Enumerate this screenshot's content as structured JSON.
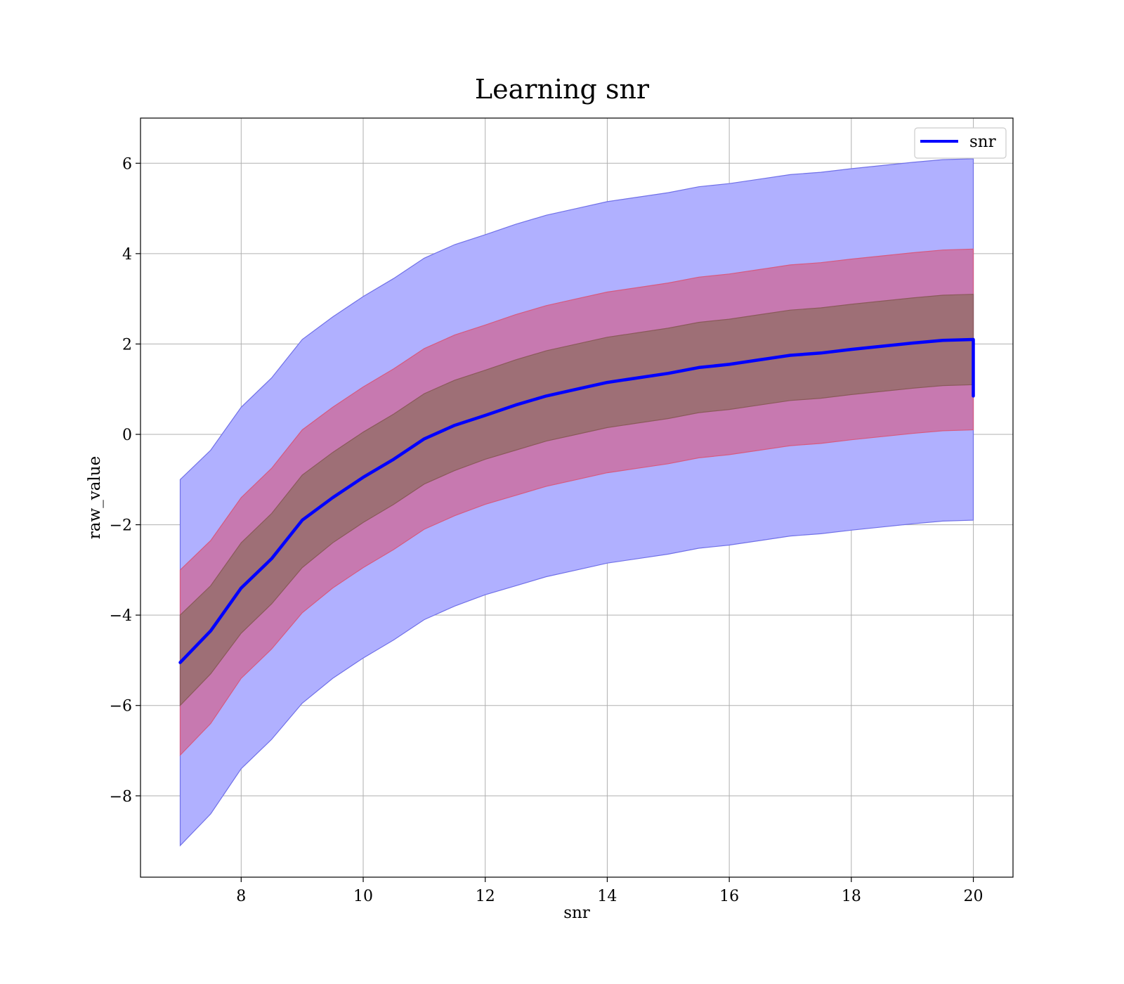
{
  "chart_data": {
    "type": "line",
    "title": "Learning snr",
    "xlabel": "snr",
    "ylabel": "raw_value",
    "xlim": [
      6.35,
      20.65
    ],
    "ylim": [
      -9.8,
      7.0
    ],
    "xticks": [
      8,
      10,
      12,
      14,
      16,
      18,
      20
    ],
    "yticks": [
      -8,
      -6,
      -4,
      -2,
      0,
      2,
      4,
      6
    ],
    "ytick_labels": [
      "−8",
      "−6",
      "−4",
      "−2",
      "0",
      "2",
      "4",
      "6"
    ],
    "xtick_labels": [
      "8",
      "10",
      "12",
      "14",
      "16",
      "18",
      "20"
    ],
    "grid": true,
    "legend": {
      "position": "top-right",
      "entries": [
        "snr"
      ]
    },
    "colors": {
      "line": "#0000ff",
      "outer_band": "#b0b0ff",
      "outer_edge": "#7070e8",
      "middle_band": "#c779b0",
      "middle_edge": "#d65a80",
      "inner_band": "#9e6f76",
      "inner_edge": "#8a5a5a",
      "grid": "#b0b0b0"
    },
    "series": [
      {
        "name": "snr",
        "x": [
          7.0,
          7.5,
          8.0,
          8.5,
          9.0,
          9.5,
          10.0,
          10.5,
          11.0,
          11.5,
          12.0,
          12.5,
          13.0,
          13.5,
          14.0,
          14.5,
          15.0,
          15.5,
          16.0,
          16.5,
          17.0,
          17.5,
          18.0,
          18.5,
          19.0,
          19.5,
          20.0
        ],
        "y": [
          -5.05,
          -4.35,
          -3.4,
          -2.75,
          -1.9,
          -1.4,
          -0.95,
          -0.55,
          -0.1,
          0.2,
          0.42,
          0.65,
          0.85,
          1.0,
          1.15,
          1.25,
          1.35,
          1.48,
          1.55,
          1.65,
          1.75,
          1.8,
          1.88,
          1.95,
          2.02,
          2.08,
          2.1
        ],
        "band_inner": {
          "lower": [
            -6.0,
            -5.3,
            -4.4,
            -3.75,
            -2.95,
            -2.4,
            -1.95,
            -1.55,
            -1.1,
            -0.8,
            -0.55,
            -0.35,
            -0.15,
            0.0,
            0.15,
            0.25,
            0.35,
            0.48,
            0.55,
            0.65,
            0.75,
            0.8,
            0.88,
            0.95,
            1.02,
            1.08,
            1.1
          ],
          "upper": [
            -4.0,
            -3.35,
            -2.4,
            -1.75,
            -0.9,
            -0.4,
            0.05,
            0.45,
            0.9,
            1.2,
            1.42,
            1.65,
            1.85,
            2.0,
            2.15,
            2.25,
            2.35,
            2.48,
            2.55,
            2.65,
            2.75,
            2.8,
            2.88,
            2.95,
            3.02,
            3.08,
            3.1
          ]
        },
        "band_middle": {
          "lower": [
            -7.1,
            -6.4,
            -5.4,
            -4.75,
            -3.95,
            -3.4,
            -2.95,
            -2.55,
            -2.1,
            -1.8,
            -1.55,
            -1.35,
            -1.15,
            -1.0,
            -0.85,
            -0.75,
            -0.65,
            -0.52,
            -0.45,
            -0.35,
            -0.25,
            -0.2,
            -0.12,
            -0.05,
            0.02,
            0.08,
            0.1
          ],
          "upper": [
            -3.0,
            -2.35,
            -1.4,
            -0.75,
            0.1,
            0.6,
            1.05,
            1.45,
            1.9,
            2.2,
            2.42,
            2.65,
            2.85,
            3.0,
            3.15,
            3.25,
            3.35,
            3.48,
            3.55,
            3.65,
            3.75,
            3.8,
            3.88,
            3.95,
            4.02,
            4.08,
            4.1
          ]
        },
        "band_outer": {
          "lower": [
            -9.1,
            -8.4,
            -7.4,
            -6.75,
            -5.95,
            -5.4,
            -4.95,
            -4.55,
            -4.1,
            -3.8,
            -3.55,
            -3.35,
            -3.15,
            -3.0,
            -2.85,
            -2.75,
            -2.65,
            -2.52,
            -2.45,
            -2.35,
            -2.25,
            -2.2,
            -2.12,
            -2.05,
            -1.98,
            -1.92,
            -1.9
          ],
          "upper": [
            -1.0,
            -0.35,
            0.6,
            1.25,
            2.1,
            2.6,
            3.05,
            3.45,
            3.9,
            4.2,
            4.42,
            4.65,
            4.85,
            5.0,
            5.15,
            5.25,
            5.35,
            5.48,
            5.55,
            5.65,
            5.75,
            5.8,
            5.88,
            5.95,
            6.02,
            6.08,
            6.1
          ]
        },
        "final_drop": [
          2.1,
          0.85
        ]
      }
    ]
  }
}
